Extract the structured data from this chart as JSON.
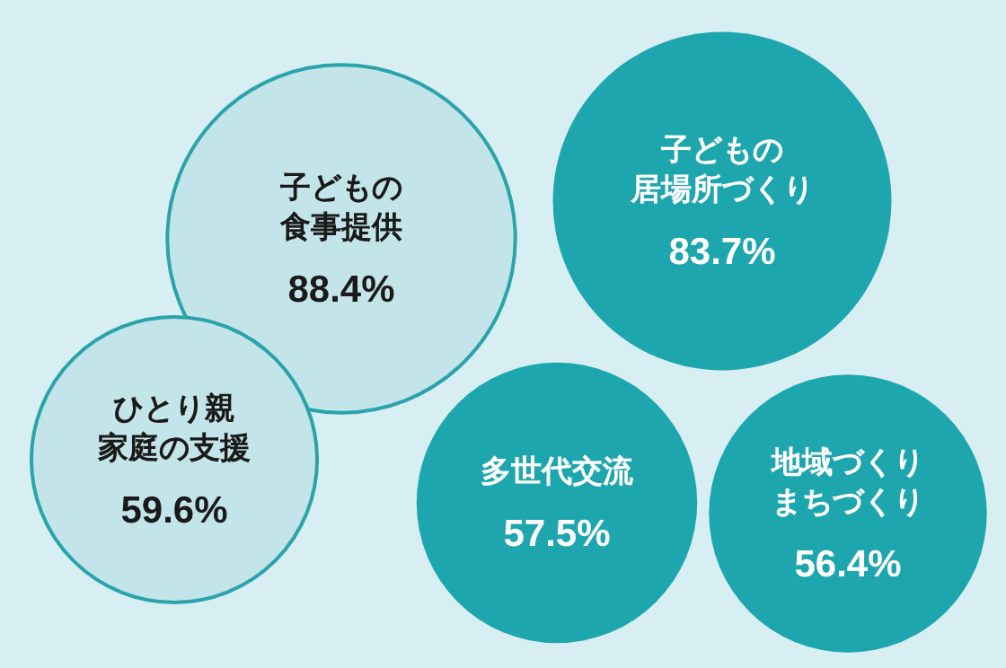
{
  "chart_data": {
    "type": "other",
    "categories": [
      "子どもの食事提供",
      "子どもの居場所づくり",
      "ひとり親家庭の支援",
      "多世代交流",
      "地域づくりまちづくり"
    ],
    "values": [
      88.4,
      83.7,
      59.6,
      57.5,
      56.4
    ],
    "value_labels": [
      "88.4%",
      "83.7%",
      "59.6%",
      "57.5%",
      "56.4%"
    ],
    "colors": [
      "#c3e5e9",
      "#1ea6ae",
      "#c3e5e9",
      "#1ea6ae",
      "#1ea6ae"
    ]
  }
}
